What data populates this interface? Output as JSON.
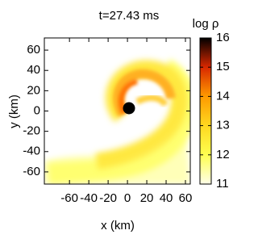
{
  "chart_data": {
    "type": "density_map",
    "title": "t=27.43 ms",
    "xlabel": "x (km)",
    "ylabel": "y (km)",
    "xlim": [
      -86,
      65
    ],
    "ylim": [
      -72,
      72
    ],
    "xticks": [
      -60,
      -40,
      -20,
      0,
      20,
      40,
      60
    ],
    "yticks": [
      -60,
      -40,
      -20,
      0,
      20,
      40,
      60
    ],
    "colorbar": {
      "label": "log ρ",
      "lim": [
        11,
        16
      ],
      "ticks": [
        11,
        12,
        13,
        14,
        15,
        16
      ]
    }
  }
}
